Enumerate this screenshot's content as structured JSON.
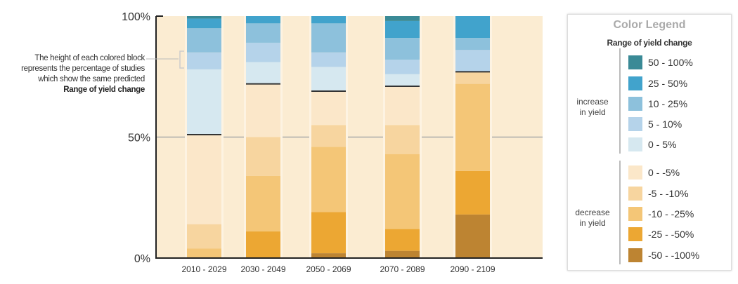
{
  "chart_data": {
    "type": "bar",
    "stacked": true,
    "ylim": [
      0,
      100
    ],
    "yticks": [
      "0%",
      "50%",
      "100%"
    ],
    "grid": "50% reference line",
    "categories": [
      "2010 - 2029",
      "2030 - 2049",
      "2050 - 2069",
      "2070 - 2089",
      "2090 - 2109"
    ],
    "series": [
      {
        "name": "-50 - -100%",
        "color": "#bd8432",
        "values": [
          0,
          0,
          2,
          3,
          18
        ]
      },
      {
        "name": "-25 - -50%",
        "color": "#eca733",
        "values": [
          0,
          11,
          17,
          9,
          18
        ]
      },
      {
        "name": "-10 - -25%",
        "color": "#f4c677",
        "values": [
          4,
          23,
          27,
          31,
          36
        ]
      },
      {
        "name": "-5 - -10%",
        "color": "#f7d59f",
        "values": [
          10,
          16,
          9,
          12,
          5
        ]
      },
      {
        "name": "0 - -5%",
        "color": "#fbe7c9",
        "values": [
          37,
          22,
          14,
          16,
          0
        ]
      },
      {
        "name": "0 - 5%",
        "color": "#d6e8f0",
        "values": [
          27,
          9,
          10,
          5,
          0
        ]
      },
      {
        "name": "5 - 10%",
        "color": "#b5d3ea",
        "values": [
          7,
          8,
          6,
          6,
          9
        ]
      },
      {
        "name": "10 - 25%",
        "color": "#8dc1dc",
        "values": [
          10,
          8,
          12,
          9,
          5
        ]
      },
      {
        "name": "25 - 50%",
        "color": "#41a3cc",
        "values": [
          4,
          3,
          3,
          7,
          9
        ]
      },
      {
        "name": "50 - 100%",
        "color": "#3a8a96",
        "values": [
          1,
          0,
          0,
          2,
          0
        ]
      }
    ],
    "background_color": "#fbecd2",
    "annotation": {
      "text": "The height of each colored block represents the percentage of studies which show the same predicted",
      "bold": "Range of yield change"
    }
  },
  "legend": {
    "title": "Color Legend",
    "subtitle": "Range of yield change",
    "increase_label": [
      "increase",
      "in yield"
    ],
    "decrease_label": [
      "decrease",
      "in yield"
    ],
    "placement": "right"
  }
}
